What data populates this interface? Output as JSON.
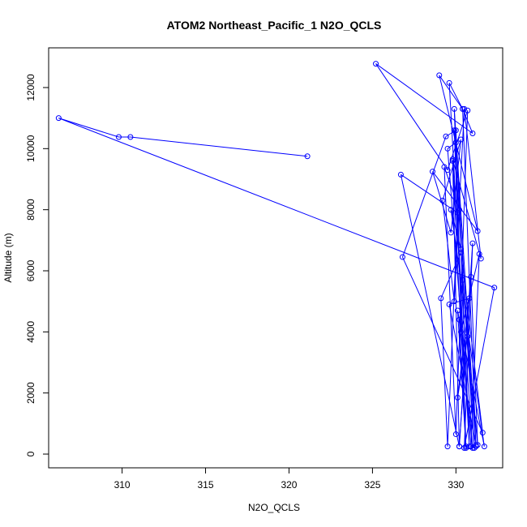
{
  "chart_data": {
    "type": "line",
    "title": "ATOM2 Northeast_Pacific_1 N2O_QCLS",
    "xlabel": "N2O_QCLS",
    "ylabel": "Altitude (m)",
    "xlim": [
      305.6,
      332.8
    ],
    "ylim": [
      -450,
      13300
    ],
    "xticks": [
      310,
      315,
      320,
      325,
      330
    ],
    "yticks": [
      0,
      2000,
      4000,
      6000,
      8000,
      10000,
      12000
    ],
    "grid": false,
    "legend": "none",
    "series": [
      {
        "color": "#0000ff",
        "marker": "open-circle",
        "x": [
          321.1,
          310.5,
          309.8,
          306.2,
          332.3,
          330.5,
          331.0,
          330.2,
          330.9,
          331.3,
          330.7,
          330.1,
          330.8,
          329.6,
          331.2,
          330.4,
          329.9,
          330.6,
          330.1,
          331.7,
          329.7,
          330.3,
          331.1,
          330.0,
          329.5,
          330.9,
          331.4,
          330.3,
          329.8,
          331.0,
          330.2,
          330.6,
          329.9,
          331.2,
          330.4,
          329.6,
          330.8,
          330.0,
          329.4,
          326.8,
          331.6,
          330.3,
          329.1,
          329.5,
          330.1,
          326.7,
          330.2,
          329.8,
          331.5,
          330.5,
          329.9,
          329.2,
          330.3,
          329.7,
          328.6,
          331.3,
          329.0,
          330.4,
          331.0,
          325.2,
          329.5,
          330.7,
          330.0,
          329.3,
          330.2
        ],
        "y": [
          9750,
          10380,
          10380,
          11000,
          5450,
          200,
          6900,
          250,
          5800,
          300,
          3850,
          1850,
          5100,
          4900,
          300,
          5700,
          10600,
          200,
          4700,
          250,
          8000,
          6700,
          200,
          10200,
          10000,
          250,
          6550,
          4000,
          9600,
          200,
          4400,
          250,
          11300,
          250,
          11300,
          12150,
          250,
          10600,
          10400,
          6450,
          700,
          6600,
          5100,
          250,
          7900,
          9150,
          250,
          9650,
          6400,
          11300,
          5000,
          8300,
          10300,
          7250,
          9250,
          7300,
          12400,
          11300,
          10500,
          12780,
          9300,
          11250,
          650,
          9400,
          8000
        ]
      }
    ]
  }
}
